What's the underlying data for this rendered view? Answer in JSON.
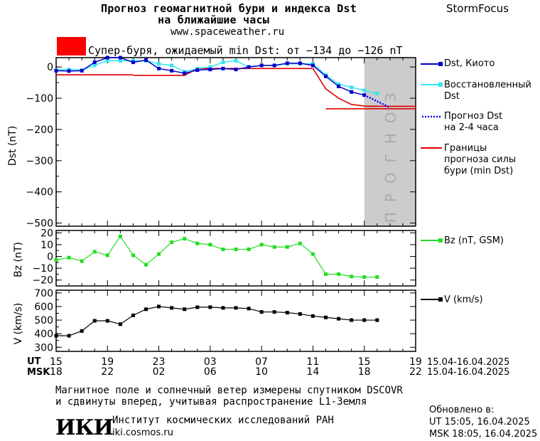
{
  "header": {
    "title_line1": "Прогноз геомагнитной бури и индекса Dst",
    "title_line2": "на ближайшие часы",
    "site": "www.spaceweather.ru",
    "brand": "StormFocus"
  },
  "alert": {
    "color": "#ff0000",
    "text": "Супер-буря, ожидаемый min Dst: от −134 до −126 nT"
  },
  "legend": {
    "dst_kyoto": "Dst, Киото",
    "reconstructed_l1": "Восстановленный",
    "reconstructed_l2": "Dst",
    "forecast_l1": "Прогноз Dst",
    "forecast_l2": "на 2-4 часа",
    "bounds_l1": "Границы",
    "bounds_l2": "прогноза силы",
    "bounds_l3": "бури (min Dst)",
    "bz": "Bz (nT, GSM)",
    "v": "V (km/s)"
  },
  "forecast_label": "ПРОГНОЗ",
  "time_axis": {
    "ut_label": "UT",
    "msk_label": "MSK",
    "ut_ticks": [
      "15",
      "19",
      "23",
      "03",
      "07",
      "11",
      "15",
      "19"
    ],
    "msk_ticks": [
      "18",
      "22",
      "02",
      "06",
      "10",
      "14",
      "18",
      "22"
    ],
    "ut_range": "15.04-16.04.2025",
    "msk_range": "15.04-16.04.2025"
  },
  "footer": {
    "note_l1": "Магнитное поле и солнечный ветер измерены спутником DSCOVR",
    "note_l2": "и сдвинуты вперед, учитывая распространение L1-Земля",
    "logo": "ИКИ",
    "institute": "Институт космических исследований РАН",
    "institute_site": "iki.cosmos.ru",
    "updated_label": "Обновлено в:",
    "updated_ut": "UT  15:05, 16.04.2025",
    "updated_msk": "MSK 18:05, 16.04.2025"
  },
  "colors": {
    "dst": "#0000cc",
    "reconstructed": "#33e6f0",
    "forecast": "#0000ff",
    "bounds": "#e00000",
    "bz": "#22dd22",
    "v": "#000000",
    "forecast_band": "#cccccc"
  },
  "chart_data": [
    {
      "type": "line",
      "panel": "Dst",
      "ylabel": "Dst (nT)",
      "ylim": [
        -510,
        30
      ],
      "yticks": [
        0,
        -100,
        -200,
        -300,
        -400,
        -500
      ],
      "xlim": [
        15,
        43
      ],
      "x_unit": "hours UT from 00:00 15.04.2025",
      "forecast_start": 39,
      "series": [
        {
          "name": "Dst, Киото",
          "x": [
            15,
            16,
            17,
            18,
            19,
            20,
            21,
            22,
            23,
            24,
            25,
            26,
            27,
            28,
            29,
            30,
            31,
            32,
            33,
            34,
            35,
            36,
            37,
            38,
            39
          ],
          "y": [
            -12,
            -13,
            -12,
            15,
            30,
            30,
            15,
            22,
            -5,
            -12,
            -20,
            -10,
            -8,
            -5,
            -8,
            0,
            5,
            5,
            12,
            12,
            5,
            -30,
            -62,
            -80,
            -90
          ]
        },
        {
          "name": "Восстановленный Dst",
          "x": [
            15,
            16,
            17,
            18,
            19,
            20,
            21,
            22,
            23,
            24,
            25,
            26,
            27,
            28,
            29,
            30,
            31,
            32,
            33,
            34,
            35,
            36,
            37,
            38,
            39,
            40
          ],
          "y": [
            -10,
            -8,
            -10,
            5,
            20,
            20,
            20,
            20,
            10,
            5,
            -15,
            -5,
            0,
            15,
            20,
            0,
            5,
            5,
            10,
            10,
            10,
            -25,
            -55,
            -65,
            -75,
            -85
          ]
        },
        {
          "name": "Прогноз Dst на 2-4 часа",
          "x": [
            39,
            40,
            41
          ],
          "y": [
            -90,
            -110,
            -130
          ]
        },
        {
          "name": "Границы прогноза силы бури (min Dst)",
          "segments": [
            {
              "x": [
                15,
                21
              ],
              "y": [
                -25,
                -25
              ]
            },
            {
              "x": [
                21,
                25
              ],
              "y": [
                -27,
                -27
              ]
            },
            {
              "x": [
                25,
                26,
                27,
                35
              ],
              "y": [
                -27,
                -5,
                -5,
                -5
              ]
            },
            {
              "x": [
                35,
                36,
                37,
                38,
                39,
                40
              ],
              "y": [
                -5,
                -70,
                -100,
                -120,
                -125,
                -126
              ]
            },
            {
              "x": [
                36,
                43
              ],
              "y": [
                -134,
                -134
              ]
            },
            {
              "x": [
                39,
                43
              ],
              "y": [
                -126,
                -126
              ]
            }
          ]
        }
      ]
    },
    {
      "type": "line",
      "panel": "Bz",
      "ylabel": "Bz (nT)",
      "ylim": [
        -25,
        22
      ],
      "yticks": [
        20,
        10,
        0,
        -10,
        -20
      ],
      "series": [
        {
          "name": "Bz (nT, GSM)",
          "x": [
            15,
            16,
            17,
            18,
            19,
            20,
            21,
            22,
            23,
            24,
            25,
            26,
            27,
            28,
            29,
            30,
            31,
            32,
            33,
            34,
            35,
            36,
            37,
            38,
            39,
            40
          ],
          "y": [
            -3,
            -1,
            -4,
            4,
            1,
            17,
            1,
            -7,
            2,
            12,
            15,
            11,
            10,
            6,
            6,
            6,
            10,
            8,
            8,
            11,
            2,
            -15,
            -15,
            -17,
            -17.5,
            -17.5
          ]
        }
      ]
    },
    {
      "type": "line",
      "panel": "V",
      "ylabel": "V (km/s)",
      "ylim": [
        270,
        720
      ],
      "yticks": [
        700,
        600,
        500,
        400,
        300
      ],
      "series": [
        {
          "name": "V (km/s)",
          "x": [
            15,
            16,
            17,
            18,
            19,
            20,
            21,
            22,
            23,
            24,
            25,
            26,
            27,
            28,
            29,
            30,
            31,
            32,
            33,
            34,
            35,
            36,
            37,
            38,
            39,
            40
          ],
          "y": [
            385,
            385,
            420,
            495,
            495,
            470,
            535,
            580,
            600,
            590,
            580,
            595,
            595,
            590,
            590,
            585,
            560,
            560,
            555,
            545,
            530,
            520,
            510,
            500,
            500,
            500
          ]
        }
      ]
    }
  ]
}
